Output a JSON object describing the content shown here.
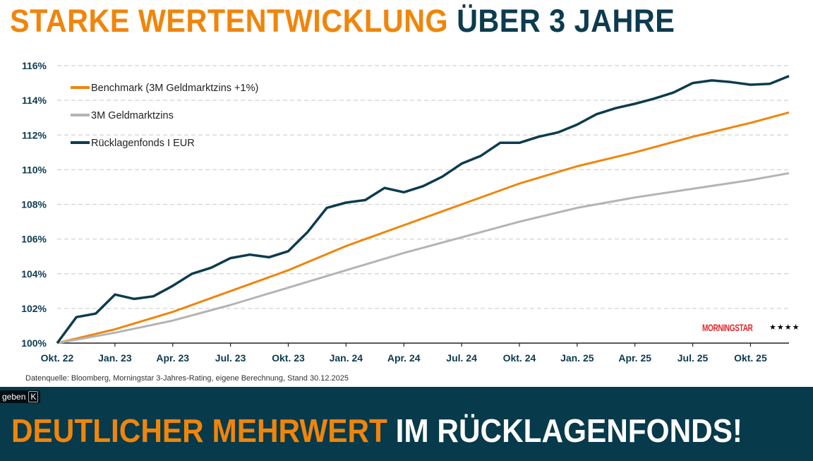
{
  "title": {
    "part1": "STARKE WERTENTWICKLUNG",
    "part2": "ÜBER 3 JAHRE"
  },
  "source": "Datenquelle: Bloomberg, Morningstar 3-Jahres-Rating, eigene Berechnung, Stand 30.12.2025",
  "banner": {
    "part1": "DEUTLICHER MEHRWERT",
    "part2": "IM RÜCKLAGENFONDS!"
  },
  "tooltip": {
    "text": "geben",
    "key": "K"
  },
  "morningstar": {
    "logo": "MORNINGSTAR",
    "stars": "★★★★"
  },
  "colors": {
    "orange": "#F0850A",
    "dark": "#0D3B4F",
    "gray": "#B4B4B4",
    "banner": "#073A4B"
  },
  "chart_data": {
    "type": "line",
    "title": "",
    "xlabel": "",
    "ylabel": "",
    "ylim": [
      100,
      116
    ],
    "yticks": [
      100,
      102,
      104,
      106,
      108,
      110,
      112,
      114,
      116
    ],
    "ytick_labels": [
      "100%",
      "102%",
      "104%",
      "106%",
      "108%",
      "110%",
      "112%",
      "114%",
      "116%"
    ],
    "x_month_range": [
      0,
      38
    ],
    "xticks": [
      0,
      3,
      6,
      9,
      12,
      15,
      18,
      21,
      24,
      27,
      30,
      33,
      36
    ],
    "xtick_labels": [
      "Okt. 22",
      "Jan. 23",
      "Apr. 23",
      "Jul. 23",
      "Okt. 23",
      "Jan. 24",
      "Apr. 24",
      "Jul. 24",
      "Okt. 24",
      "Jan. 25",
      "Apr. 25",
      "Jul. 25",
      "Okt. 25"
    ],
    "grid": "horizontal dashed",
    "legend_position": "top-left",
    "series": [
      {
        "name": "Benchmark (3M Geldmarktzins +1%)",
        "color": "#F0850A",
        "x": [
          0,
          3,
          6,
          9,
          12,
          15,
          18,
          21,
          24,
          27,
          30,
          33,
          36,
          38
        ],
        "values": [
          100,
          100.8,
          101.8,
          103.0,
          104.2,
          105.6,
          106.8,
          108.0,
          109.2,
          110.2,
          111.0,
          111.9,
          112.7,
          113.3
        ]
      },
      {
        "name": "3M Geldmarktzins",
        "color": "#B4B4B4",
        "x": [
          0,
          3,
          6,
          9,
          12,
          15,
          18,
          21,
          24,
          27,
          30,
          33,
          36,
          38
        ],
        "values": [
          100,
          100.6,
          101.3,
          102.2,
          103.2,
          104.2,
          105.2,
          106.1,
          107.0,
          107.8,
          108.4,
          108.9,
          109.4,
          109.8
        ]
      },
      {
        "name": "Rücklagenfonds I EUR",
        "color": "#0D3B4F",
        "x": [
          0,
          1,
          2,
          3,
          4,
          5,
          6,
          7,
          8,
          9,
          10,
          11,
          12,
          13,
          14,
          15,
          16,
          17,
          18,
          19,
          20,
          21,
          22,
          23,
          24,
          25,
          26,
          27,
          28,
          29,
          30,
          31,
          32,
          33,
          34,
          35,
          36,
          37,
          38
        ],
        "values": [
          100,
          101.5,
          101.7,
          102.8,
          102.55,
          102.7,
          103.3,
          104.0,
          104.35,
          104.9,
          105.1,
          104.95,
          105.3,
          106.4,
          107.8,
          108.1,
          108.25,
          108.95,
          108.7,
          109.05,
          109.6,
          110.35,
          110.8,
          111.55,
          111.55,
          111.9,
          112.15,
          112.6,
          113.2,
          113.55,
          113.8,
          114.1,
          114.45,
          115.0,
          115.15,
          115.05,
          114.9,
          114.95,
          115.4
        ]
      }
    ]
  }
}
